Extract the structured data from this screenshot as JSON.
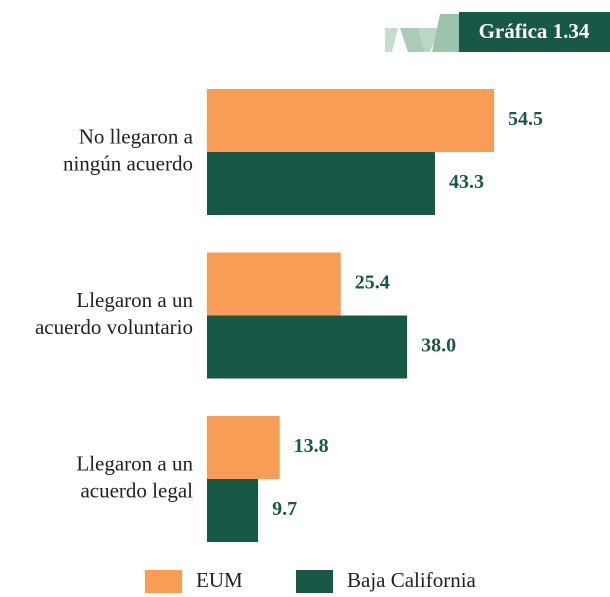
{
  "header": {
    "title": "Gráfica 1.34"
  },
  "chart_data": {
    "type": "bar",
    "orientation": "horizontal",
    "categories": [
      "No llegaron a\nningún acuerdo",
      "Llegaron a un\nacuerdo voluntario",
      "Llegaron a un\nacuerdo legal"
    ],
    "series": [
      {
        "name": "EUM",
        "color": "#f89d55",
        "values": [
          54.5,
          25.4,
          13.8
        ],
        "value_labels": [
          "54.5",
          "25.4",
          "13.8"
        ]
      },
      {
        "name": "Baja California",
        "color": "#175846",
        "values": [
          43.3,
          38.0,
          9.7
        ],
        "value_labels": [
          "43.3",
          "38.0",
          "9.7"
        ]
      }
    ],
    "legend": "bottom"
  }
}
